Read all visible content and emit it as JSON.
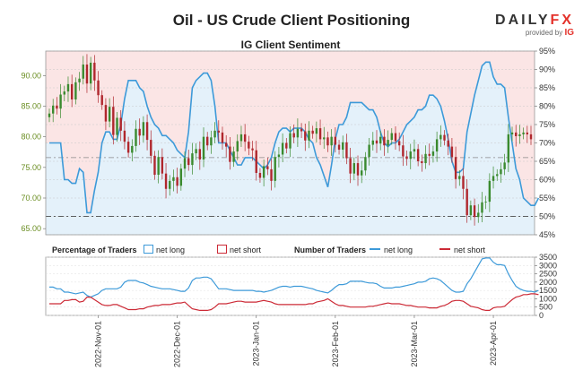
{
  "header": {
    "title": "Oil - US Crude Client Positioning",
    "subtitle": "IG Client Sentiment",
    "brand_main": "DAILY",
    "brand_accent": "FX",
    "brand_provided": "provided by",
    "brand_ig": "IG"
  },
  "legend": {
    "pct_title": "Percentage of Traders",
    "pct_long": "net long",
    "pct_short": "net short",
    "num_title": "Number of Traders",
    "num_long": "net long",
    "num_short": "net short"
  },
  "colors": {
    "net_long": "#3d9ad9",
    "net_short": "#cc2a36",
    "candle_up": "#3a8a2e",
    "candle_down": "#b0272d",
    "upper_fill": "#fbe5e5",
    "lower_fill": "#e4f1fa",
    "price_axis": "#6b8e23"
  },
  "chart_data": [
    {
      "type": "candlestick",
      "title": "IG Client Sentiment",
      "left_axis": {
        "ylim": [
          64,
          94
        ],
        "ticks": [
          "65.00",
          "70.00",
          "75.00",
          "80.00",
          "85.00",
          "90.00"
        ]
      },
      "right_axis": {
        "ylim": [
          45,
          95
        ],
        "ticks": [
          "45%",
          "50%",
          "55%",
          "60%",
          "65%",
          "70%",
          "75%",
          "80%",
          "85%",
          "90%",
          "95%"
        ]
      },
      "x_ticks": [
        "2022-Nov-01",
        "2022-Dec-01",
        "2023-Jan-01",
        "2023-Feb-01",
        "2023-Mar-01",
        "2023-Apr-01"
      ],
      "reference_levels": {
        "price_dashed": 67.0,
        "sentiment_dashed_pct": 66
      },
      "price_close": [
        83.8,
        85.1,
        84.6,
        86.9,
        87.4,
        88.6,
        86.1,
        88.9,
        89.5,
        91.8,
        88.7,
        92.1,
        89.2,
        86.8,
        85.2,
        82.5,
        84.9,
        80.3,
        83.1,
        81.0,
        79.2,
        77.4,
        78.5,
        81.3,
        80.2,
        82.4,
        79.5,
        76.9,
        73.8,
        76.7,
        74.0,
        71.5,
        72.8,
        73.4,
        72.0,
        74.8,
        76.5,
        75.4,
        77.3,
        78.0,
        76.3,
        80.0,
        78.6,
        79.9,
        81.0,
        80.7,
        79.0,
        78.4,
        75.9,
        77.6,
        79.3,
        80.4,
        79.2,
        78.1,
        77.8,
        74.1,
        73.3,
        75.2,
        74.7,
        72.8,
        76.7,
        77.1,
        79.0,
        78.1,
        80.6,
        79.9,
        81.3,
        80.9,
        79.4,
        81.0,
        80.5,
        81.4,
        79.6,
        79.9,
        78.6,
        80.0,
        78.7,
        77.9,
        79.1,
        76.5,
        74.0,
        75.7,
        73.7,
        74.5,
        76.7,
        78.7,
        79.4,
        78.9,
        80.0,
        78.6,
        79.5,
        80.6,
        79.3,
        78.6,
        76.8,
        76.4,
        77.6,
        78.0,
        76.0,
        75.7,
        77.2,
        76.9,
        77.6,
        79.6,
        80.3,
        79.4,
        78.4,
        76.7,
        73.1,
        73.6,
        71.5,
        67.2,
        68.8,
        66.9,
        67.6,
        69.3,
        69.4,
        72.8,
        73.6,
        73.9,
        74.7,
        75.8,
        80.4,
        80.7,
        80.1,
        80.4,
        80.7,
        80.4,
        79.6
      ],
      "series": [
        {
          "name": "net long",
          "unit": "%",
          "values": [
            70,
            70,
            70,
            70,
            60,
            60,
            59,
            59,
            63,
            62,
            51,
            51,
            57,
            62,
            70,
            73,
            73,
            71,
            71,
            75,
            82,
            87,
            87,
            87,
            85,
            84,
            80,
            77,
            75,
            74,
            72,
            72,
            71,
            70,
            68,
            67,
            66,
            73,
            85,
            87,
            88,
            89,
            89,
            87,
            80,
            70,
            70,
            70,
            68,
            66,
            64,
            64,
            66,
            66,
            66,
            65,
            64,
            63,
            64,
            66,
            70,
            73,
            74,
            74,
            73,
            74,
            74,
            74,
            73,
            71,
            70,
            66,
            64,
            61,
            58,
            64,
            71,
            75,
            75,
            77,
            81,
            81,
            81,
            81,
            80,
            79,
            79,
            77,
            73,
            70,
            69,
            70,
            70,
            71,
            73,
            75,
            76,
            77,
            79,
            79,
            80,
            83,
            83,
            82,
            80,
            76,
            71,
            65,
            62,
            62,
            63,
            73,
            78,
            83,
            87,
            91,
            92,
            92,
            88,
            86,
            86,
            85,
            77,
            70,
            63,
            60,
            55,
            54,
            53,
            53,
            55
          ]
        },
        {
          "name": "net long",
          "unit": "traders",
          "values": [
            1700,
            1700,
            1600,
            1600,
            1400,
            1400,
            1350,
            1300,
            1350,
            1400,
            1200,
            1100,
            1200,
            1300,
            1500,
            1600,
            1600,
            1600,
            1600,
            1700,
            2000,
            2100,
            2100,
            2100,
            2000,
            1950,
            1850,
            1750,
            1700,
            1650,
            1600,
            1600,
            1600,
            1550,
            1500,
            1450,
            1450,
            1650,
            2100,
            2250,
            2250,
            2300,
            2300,
            2200,
            1900,
            1600,
            1600,
            1600,
            1550,
            1500,
            1500,
            1500,
            1500,
            1500,
            1500,
            1450,
            1450,
            1400,
            1450,
            1500,
            1600,
            1700,
            1750,
            1750,
            1700,
            1750,
            1750,
            1750,
            1700,
            1650,
            1600,
            1500,
            1450,
            1400,
            1350,
            1500,
            1700,
            1850,
            1850,
            1900,
            2050,
            2050,
            2050,
            2050,
            2000,
            1950,
            1950,
            1900,
            1750,
            1650,
            1650,
            1650,
            1700,
            1700,
            1750,
            1800,
            1850,
            1900,
            2000,
            2000,
            2050,
            2200,
            2250,
            2200,
            2100,
            1900,
            1700,
            1500,
            1400,
            1400,
            1450,
            1900,
            2200,
            2600,
            3000,
            3400,
            3450,
            3450,
            3200,
            3050,
            3050,
            3000,
            2500,
            2100,
            1750,
            1600,
            1500,
            1450,
            1450,
            1400,
            1500
          ]
        },
        {
          "name": "net short",
          "unit": "traders",
          "values": [
            700,
            700,
            700,
            700,
            900,
            900,
            950,
            950,
            800,
            850,
            1100,
            1100,
            950,
            800,
            650,
            600,
            600,
            650,
            650,
            550,
            450,
            350,
            350,
            350,
            400,
            400,
            500,
            550,
            600,
            600,
            650,
            650,
            650,
            700,
            750,
            750,
            800,
            600,
            400,
            350,
            300,
            300,
            300,
            350,
            500,
            700,
            700,
            700,
            750,
            800,
            850,
            850,
            800,
            800,
            800,
            800,
            850,
            900,
            850,
            800,
            700,
            650,
            650,
            650,
            650,
            650,
            650,
            650,
            650,
            700,
            700,
            800,
            850,
            900,
            1000,
            850,
            700,
            600,
            600,
            550,
            500,
            500,
            500,
            500,
            500,
            550,
            550,
            600,
            650,
            700,
            750,
            700,
            700,
            700,
            650,
            600,
            600,
            550,
            500,
            500,
            500,
            450,
            450,
            450,
            550,
            600,
            700,
            850,
            900,
            900,
            850,
            700,
            550,
            500,
            450,
            350,
            300,
            300,
            450,
            500,
            500,
            550,
            750,
            950,
            1100,
            1150,
            1250,
            1250,
            1300,
            1300,
            1250
          ]
        }
      ]
    },
    {
      "type": "line",
      "title": "Number of Traders",
      "right_axis": {
        "ylim": [
          0,
          3500
        ],
        "ticks": [
          "0",
          "500",
          "1000",
          "1500",
          "2000",
          "2500",
          "3000",
          "3500"
        ]
      }
    }
  ]
}
